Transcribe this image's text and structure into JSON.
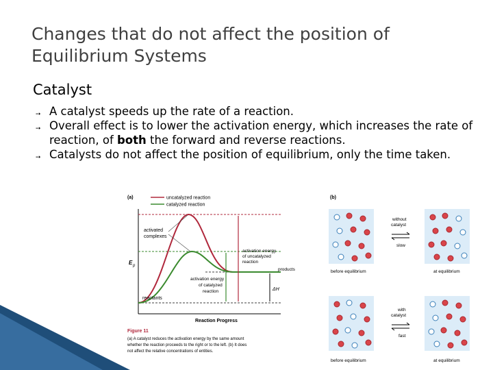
{
  "slide": {
    "title_line1": "Changes that do not affect the position of",
    "title_line2": "Equilibrium Systems",
    "subheading": "Catalyst",
    "bullets": [
      {
        "pre": "A catalyst speeds up the rate of a reaction.",
        "bold": "",
        "post": ""
      },
      {
        "pre": "Overall effect is to lower the activation energy, which increases the rate of reaction, of ",
        "bold": "both",
        "post": " the forward and reverse reactions."
      },
      {
        "pre": "Catalysts do not affect the position of equilibrium, only the time taken.",
        "bold": "",
        "post": ""
      }
    ]
  },
  "figure": {
    "panel_a": "(a)",
    "panel_b": "(b)",
    "legend_uncat": "uncatalyzed reaction",
    "legend_cat": "catalyzed reaction",
    "activated": "activated",
    "complexes": "complexes",
    "ep": "E",
    "ep_sub": "p",
    "act_uncat_1": "activation energy",
    "act_uncat_2": "of uncatalyzed",
    "act_uncat_3": "reaction",
    "products": "products",
    "act_cat_1": "activation energy",
    "act_cat_2": "of catalyzed",
    "act_cat_3": "reaction",
    "dh": "ΔH",
    "reactants": "reactants",
    "xaxis": "Reaction Progress",
    "caption_head": "Figure 11",
    "caption_1": "(a) A catalyst reduces the activation energy by the same amount",
    "caption_2": "whether the reaction proceeds to the right or to the left. (b) It does",
    "caption_3": "not affect the relative concentrations of entities.",
    "without_1": "without",
    "without_2": "catalyst",
    "slow": "slow",
    "with_1": "with",
    "with_2": "catalyst",
    "fast": "fast",
    "before_eq": "before equilibrium",
    "at_eq": "at equilibrium"
  },
  "colors": {
    "title": "#404040",
    "uncatalyzed": "#b0283c",
    "catalyzed": "#3a8a2e",
    "box": "#dcecf8",
    "corner_dark": "#1f4e79",
    "corner_light": "#4a86c0"
  }
}
